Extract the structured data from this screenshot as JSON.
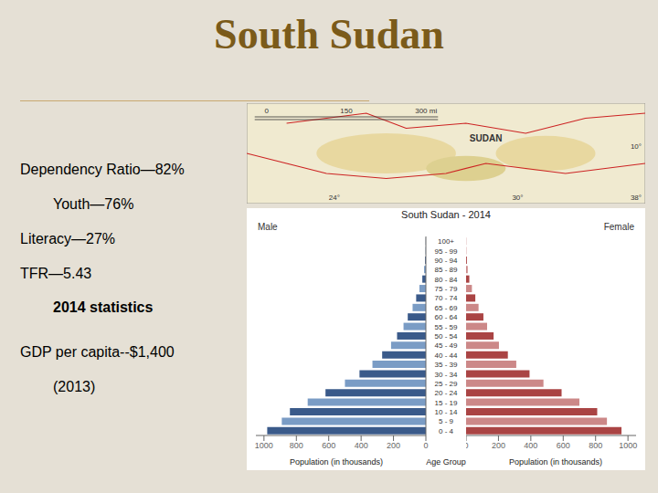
{
  "chart_data": {
    "type": "bar",
    "orientation": "horizontal",
    "title": "South Sudan",
    "subtitle": "South Sudan - 2014",
    "annotations": [
      "Dependency Ratio—82%",
      "Youth—76%",
      "Literacy—27%",
      "TFR—5.43",
      "2014 statistics",
      "GDP per capita--$1,400",
      "(2013)",
      "SUDAN",
      "0",
      "150",
      "300 mi",
      "24°",
      "30°",
      "38°",
      "10°"
    ],
    "categories": [
      "0 - 4",
      "5 - 9",
      "10 - 14",
      "15 - 19",
      "20 - 24",
      "25 - 29",
      "30 - 34",
      "35 - 39",
      "40 - 44",
      "45 - 49",
      "50 - 54",
      "55 - 59",
      "60 - 64",
      "65 - 69",
      "70 - 74",
      "75 - 79",
      "80 - 84",
      "85 - 89",
      "90 - 94",
      "95 - 99",
      "100+"
    ],
    "series": [
      {
        "name": "Male",
        "colors": [
          "#3A5A8A",
          "#7A9CC5",
          "#3A5A8A",
          "#7A9CC5",
          "#3A5A8A",
          "#7A9CC5",
          "#3A5A8A",
          "#7A9CC5",
          "#3A5A8A",
          "#7A9CC5",
          "#3A5A8A",
          "#7A9CC5",
          "#3A5A8A",
          "#7A9CC5",
          "#3A5A8A",
          "#7A9CC5",
          "#3A5A8A",
          "#7A9CC5",
          "#3A5A8A",
          "#7A9CC5",
          "#3A5A8A"
        ],
        "values": [
          980,
          890,
          840,
          730,
          620,
          500,
          410,
          330,
          270,
          215,
          178,
          138,
          112,
          82,
          60,
          40,
          22,
          11,
          5,
          2,
          1
        ]
      },
      {
        "name": "Female",
        "colors": [
          "#AA4444",
          "#CC8888",
          "#AA4444",
          "#CC8888",
          "#AA4444",
          "#CC8888",
          "#AA4444",
          "#CC8888",
          "#AA4444",
          "#CC8888",
          "#AA4444",
          "#CC8888",
          "#AA4444",
          "#CC8888",
          "#AA4444",
          "#CC8888",
          "#AA4444",
          "#CC8888",
          "#AA4444",
          "#CC8888",
          "#AA4444"
        ],
        "values": [
          960,
          870,
          810,
          700,
          590,
          478,
          392,
          310,
          258,
          203,
          170,
          130,
          107,
          77,
          57,
          36,
          20,
          10,
          5,
          2,
          1
        ]
      }
    ],
    "xlabel": "Population (in thousands)",
    "ylabel": "Age Group",
    "xlim": [
      0,
      1050
    ],
    "xticks": [
      0,
      200,
      400,
      600,
      800,
      1000
    ],
    "grid": false
  }
}
